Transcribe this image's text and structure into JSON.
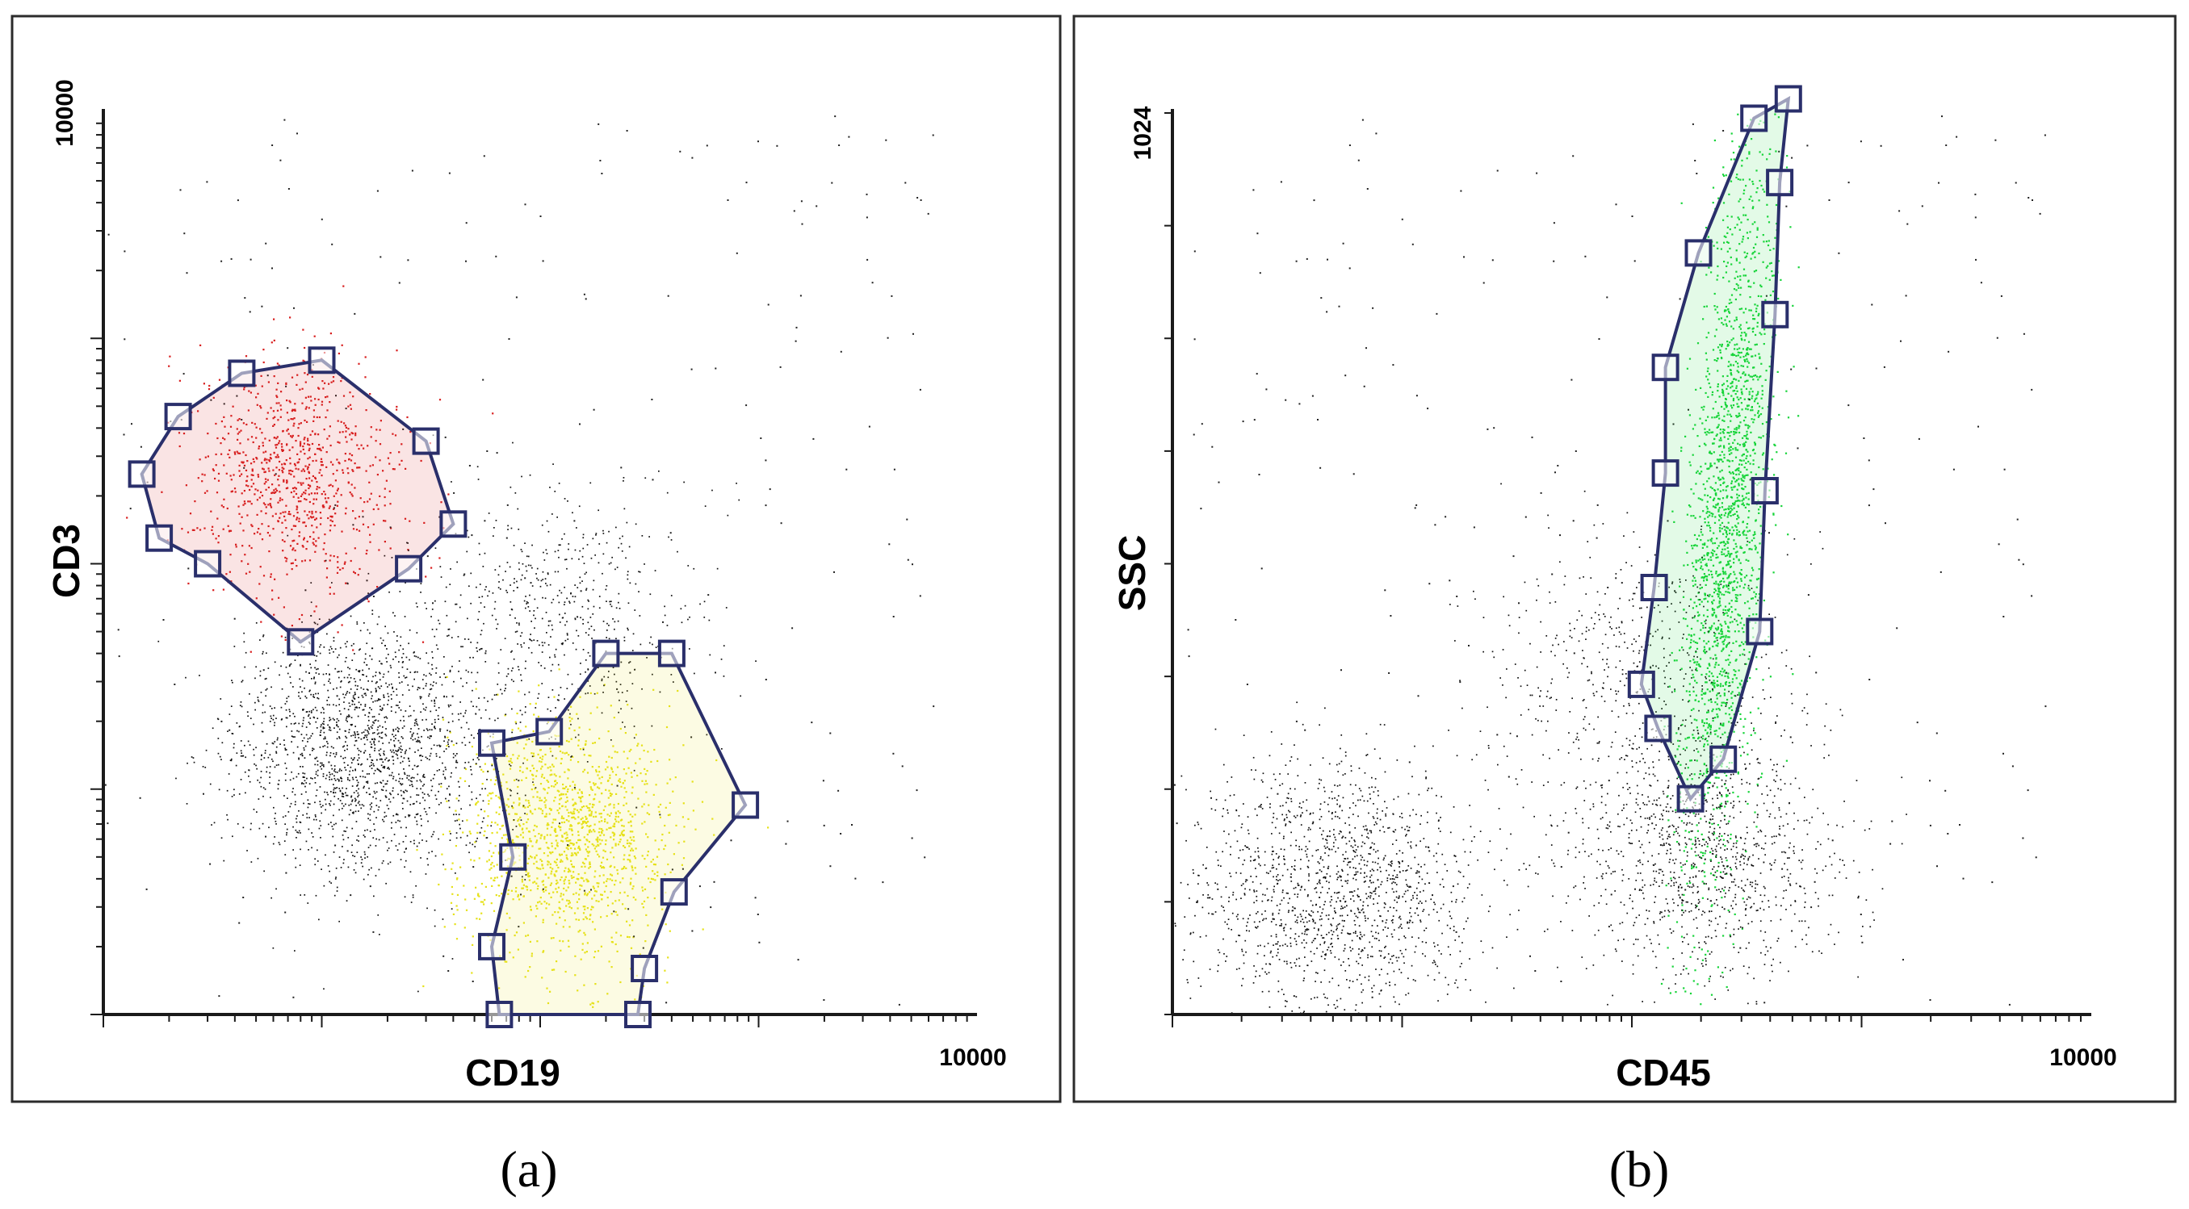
{
  "chart_data": [
    {
      "panel_label": "(a)",
      "type": "scatter",
      "xlabel": "CD19",
      "ylabel": "CD3",
      "x_scale": "log",
      "y_scale": "log",
      "xlim": [
        1,
        10000
      ],
      "ylim": [
        1,
        10000
      ],
      "x_tick_labels": [
        "10000"
      ],
      "y_tick_labels": [
        "10000"
      ],
      "populations": [
        {
          "color": "#d81e1e",
          "center": [
            7.5,
            250
          ],
          "count": 900
        },
        {
          "color": "#e6e21a",
          "center": [
            130,
            6
          ],
          "count": 1400
        },
        {
          "color": "#111111",
          "center": [
            15,
            15
          ],
          "count": 1800
        },
        {
          "color": "#111111",
          "center": [
            120,
            60
          ],
          "count": 600
        }
      ],
      "gates": [
        {
          "color": "#d81e1e",
          "vertices": [
            [
              1.5,
              250
            ],
            [
              2.2,
              450
            ],
            [
              4.3,
              700
            ],
            [
              10,
              800
            ],
            [
              30,
              350
            ],
            [
              40,
              150
            ],
            [
              25,
              95
            ],
            [
              8,
              45
            ],
            [
              3,
              100
            ],
            [
              1.8,
              130
            ]
          ]
        },
        {
          "color": "#e6e21a",
          "vertices": [
            [
              60,
              16
            ],
            [
              75,
              5
            ],
            [
              60,
              2
            ],
            [
              65,
              1
            ],
            [
              280,
              1
            ],
            [
              300,
              1.6
            ],
            [
              410,
              3.5
            ],
            [
              870,
              8.5
            ],
            [
              400,
              40
            ],
            [
              200,
              40
            ],
            [
              110,
              18
            ]
          ]
        }
      ]
    },
    {
      "panel_label": "(b)",
      "type": "scatter",
      "xlabel": "CD45",
      "ylabel": "SSC",
      "x_scale": "log",
      "y_scale": "linear",
      "xlim": [
        1,
        10000
      ],
      "ylim": [
        0,
        1024
      ],
      "x_tick_labels": [
        "10000"
      ],
      "y_tick_labels": [
        "1024"
      ],
      "populations": [
        {
          "color": "#17d43a",
          "center": [
            260,
            560
          ],
          "count": 2000
        },
        {
          "color": "#111111",
          "center": [
            5,
            140
          ],
          "count": 1500
        },
        {
          "color": "#111111",
          "center": [
            200,
            180
          ],
          "count": 1100
        },
        {
          "color": "#111111",
          "center": [
            100,
            400
          ],
          "count": 500
        }
      ],
      "gates": [
        {
          "color": "#17d43a",
          "vertices": [
            [
              340,
              1018
            ],
            [
              480,
              1040
            ],
            [
              440,
              945
            ],
            [
              420,
              795
            ],
            [
              380,
              595
            ],
            [
              360,
              435
            ],
            [
              250,
              290
            ],
            [
              180,
              245
            ],
            [
              130,
              325
            ],
            [
              110,
              375
            ],
            [
              125,
              485
            ],
            [
              140,
              615
            ],
            [
              140,
              735
            ],
            [
              195,
              865
            ]
          ]
        }
      ]
    }
  ]
}
